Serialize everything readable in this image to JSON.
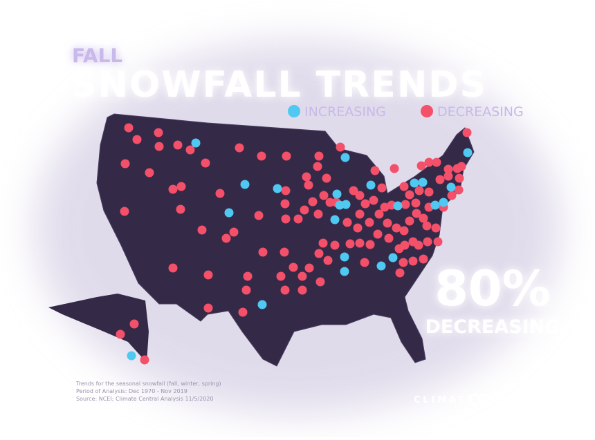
{
  "header": {
    "kicker": "FALL",
    "title": "SNOWFALL TRENDS"
  },
  "legend": {
    "items": [
      {
        "label": "INCREASING",
        "color": "#4fc8f2"
      },
      {
        "label": "DECREASING",
        "color": "#f4506a"
      }
    ]
  },
  "stat": {
    "value": "80%",
    "label": "DECREASING"
  },
  "footnote": {
    "lines": [
      "Trends for the seasonal snowfall (fall, winter, spring)",
      "Period of Analysis: Dec 1970 - Nov 2019",
      "Source: NCEI; Climate Central Analysis 11/5/2020"
    ]
  },
  "brand": {
    "name": "CLIMATE CENTRAL"
  }
}
